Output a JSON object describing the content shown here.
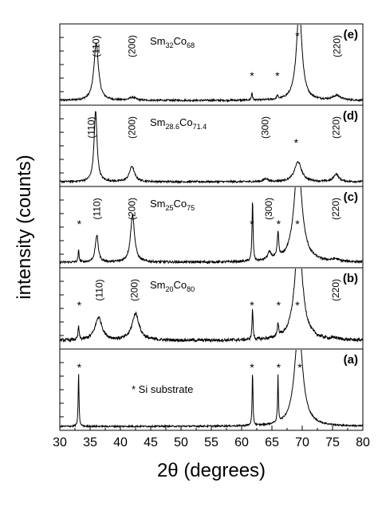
{
  "chart_data": {
    "type": "line",
    "xlabel": "2θ (degrees)",
    "ylabel": "intensity (counts)",
    "xlim": [
      30,
      80
    ],
    "x_ticks": [
      "30",
      "35",
      "40",
      "45",
      "50",
      "55",
      "60",
      "65",
      "70",
      "75",
      "80"
    ],
    "y_ticks_shown": false,
    "stacked_panels_top_to_bottom": [
      "e",
      "d",
      "c",
      "b",
      "a"
    ],
    "panels": [
      {
        "letter": "(e)",
        "composition": {
          "el1": "Sm",
          "n1": "32",
          "el2": "Co",
          "n2": "68"
        },
        "baseline": 0.03,
        "noise": 0.012,
        "peaks": [
          {
            "x": 36.0,
            "h": 0.75,
            "w": 0.45
          },
          {
            "x": 42.0,
            "h": 0.04,
            "w": 0.6
          },
          {
            "x": 61.7,
            "h": 0.1,
            "w": 0.1
          },
          {
            "x": 65.9,
            "h": 0.05,
            "w": 0.1
          },
          {
            "x": 69.5,
            "h": 1.2,
            "w": 0.55
          },
          {
            "x": 75.7,
            "h": 0.06,
            "w": 0.8
          }
        ],
        "annotations": [
          {
            "text": "(110)",
            "x": 36.0,
            "kind": "hkl"
          },
          {
            "text": "(200)",
            "x": 41.9,
            "kind": "hkl"
          },
          {
            "text": "(220)",
            "x": 75.7,
            "kind": "hkl"
          },
          {
            "text": "*",
            "x": 61.7,
            "kind": "star"
          },
          {
            "text": "*",
            "x": 65.9,
            "kind": "star"
          },
          {
            "text": "*",
            "x": 69.2,
            "kind": "star"
          }
        ]
      },
      {
        "letter": "(d)",
        "composition": {
          "el1": "Sm",
          "n1": "28.6",
          "el2": "Co",
          "n2": "71.4"
        },
        "baseline": 0.03,
        "noise": 0.012,
        "peaks": [
          {
            "x": 35.9,
            "h": 0.92,
            "w": 0.3
          },
          {
            "x": 41.9,
            "h": 0.2,
            "w": 0.5
          },
          {
            "x": 64.0,
            "h": 0.04,
            "w": 0.4
          },
          {
            "x": 69.3,
            "h": 0.26,
            "w": 0.7
          },
          {
            "x": 75.6,
            "h": 0.1,
            "w": 0.5
          }
        ],
        "annotations": [
          {
            "text": "(110)",
            "x": 35.2,
            "kind": "hkl"
          },
          {
            "text": "(200)",
            "x": 41.9,
            "kind": "hkl"
          },
          {
            "text": "(300)",
            "x": 63.9,
            "kind": "hkl"
          },
          {
            "text": "(220)",
            "x": 75.6,
            "kind": "hkl"
          },
          {
            "text": "*",
            "x": 69.0,
            "kind": "star"
          }
        ]
      },
      {
        "letter": "(c)",
        "composition": {
          "el1": "Sm",
          "n1": "25",
          "el2": "Co",
          "n2": "75"
        },
        "baseline": 0.04,
        "noise": 0.015,
        "peaks": [
          {
            "x": 33.1,
            "h": 0.15,
            "w": 0.1
          },
          {
            "x": 36.1,
            "h": 0.35,
            "w": 0.3
          },
          {
            "x": 42.0,
            "h": 0.62,
            "w": 0.4
          },
          {
            "x": 61.8,
            "h": 0.8,
            "w": 0.1
          },
          {
            "x": 64.6,
            "h": 0.1,
            "w": 0.4
          },
          {
            "x": 66.0,
            "h": 0.33,
            "w": 0.15
          },
          {
            "x": 69.3,
            "h": 1.3,
            "w": 0.8
          },
          {
            "x": 75.5,
            "h": 0.03,
            "w": 0.6
          }
        ],
        "annotations": [
          {
            "text": "(110)",
            "x": 36.1,
            "kind": "hkl"
          },
          {
            "text": "(200)",
            "x": 41.9,
            "kind": "hkl"
          },
          {
            "text": "(300)",
            "x": 64.5,
            "kind": "hkl"
          },
          {
            "text": "(220)",
            "x": 75.5,
            "kind": "hkl"
          },
          {
            "text": "*",
            "x": 33.2,
            "kind": "star"
          },
          {
            "text": "*",
            "x": 61.7,
            "kind": "star"
          },
          {
            "text": "*",
            "x": 66.1,
            "kind": "star"
          },
          {
            "text": "*",
            "x": 69.2,
            "kind": "star"
          }
        ]
      },
      {
        "letter": "(b)",
        "composition": {
          "el1": "Sm",
          "n1": "20",
          "el2": "Co",
          "n2": "80"
        },
        "baseline": 0.08,
        "noise": 0.02,
        "peaks": [
          {
            "x": 33.1,
            "h": 0.18,
            "w": 0.1
          },
          {
            "x": 36.4,
            "h": 0.3,
            "w": 0.7
          },
          {
            "x": 42.5,
            "h": 0.35,
            "w": 0.7
          },
          {
            "x": 61.8,
            "h": 0.4,
            "w": 0.1
          },
          {
            "x": 66.0,
            "h": 0.16,
            "w": 0.15
          },
          {
            "x": 69.4,
            "h": 1.3,
            "w": 0.8
          },
          {
            "x": 75.5,
            "h": 0.02,
            "w": 0.6
          }
        ],
        "annotations": [
          {
            "text": "(110)",
            "x": 36.5,
            "kind": "hkl"
          },
          {
            "text": "(200)",
            "x": 42.3,
            "kind": "hkl"
          },
          {
            "text": "(220)",
            "x": 75.5,
            "kind": "hkl"
          },
          {
            "text": "*",
            "x": 33.2,
            "kind": "star"
          },
          {
            "text": "*",
            "x": 61.7,
            "kind": "star"
          },
          {
            "text": "*",
            "x": 66.1,
            "kind": "star"
          },
          {
            "text": "*",
            "x": 69.2,
            "kind": "star"
          }
        ]
      },
      {
        "letter": "(a)",
        "composition": null,
        "note": "* Si substrate",
        "baseline": 0.02,
        "noise": 0.01,
        "peaks": [
          {
            "x": 33.1,
            "h": 0.7,
            "w": 0.08
          },
          {
            "x": 61.8,
            "h": 0.7,
            "w": 0.08
          },
          {
            "x": 66.0,
            "h": 0.6,
            "w": 0.08
          },
          {
            "x": 69.4,
            "h": 1.3,
            "w": 0.8
          }
        ],
        "annotations": [
          {
            "text": "*",
            "x": 33.2,
            "kind": "star"
          },
          {
            "text": "*",
            "x": 61.7,
            "kind": "star"
          },
          {
            "text": "*",
            "x": 66.1,
            "kind": "star"
          },
          {
            "text": "*",
            "x": 69.6,
            "kind": "star"
          }
        ]
      }
    ]
  }
}
